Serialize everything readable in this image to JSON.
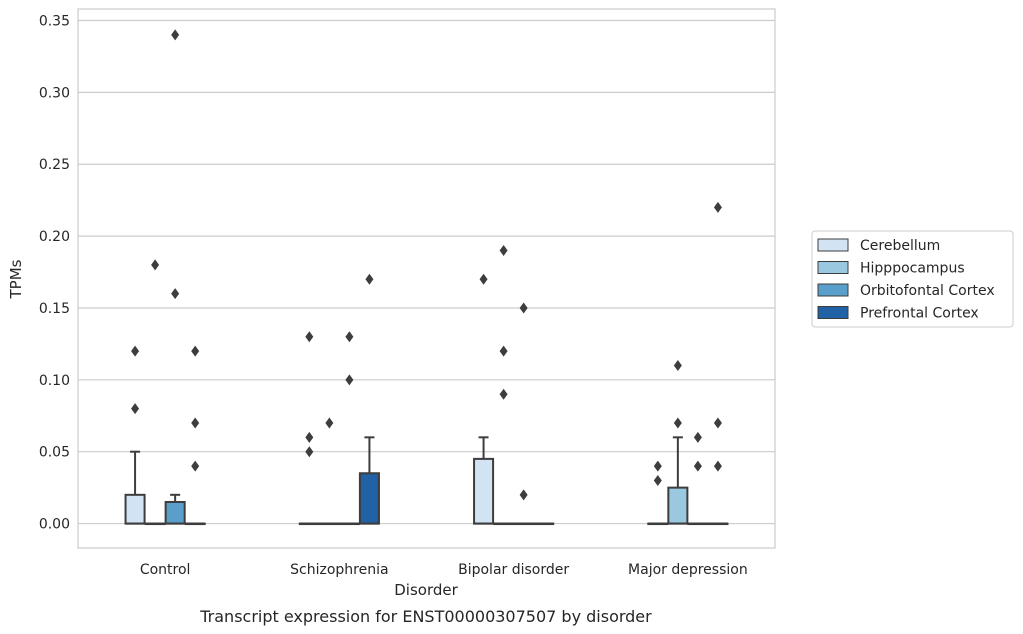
{
  "chart_data": {
    "type": "boxplot",
    "caption": "Transcript expression for ENST00000307507 by disorder",
    "xlabel": "Disorder",
    "ylabel": "TPMs",
    "ylim": [
      -0.017,
      0.358
    ],
    "yticks": [
      0.0,
      0.05,
      0.1,
      0.15,
      0.2,
      0.25,
      0.3,
      0.35
    ],
    "ytick_labels": [
      "0.00",
      "0.05",
      "0.10",
      "0.15",
      "0.20",
      "0.25",
      "0.30",
      "0.35"
    ],
    "grid": "horizontal",
    "legend_position": "right",
    "categories": [
      "Control",
      "Schizophrenia",
      "Bipolar disorder",
      "Major depression"
    ],
    "series": [
      {
        "name": "Cerebellum",
        "color": "#d2e3f3",
        "boxes": [
          {
            "q1": 0.0,
            "median": 0.0,
            "q3": 0.02,
            "whisker_low": 0.0,
            "whisker_high": 0.05,
            "outliers": [
              0.08,
              0.12
            ]
          },
          {
            "q1": 0.0,
            "median": 0.0,
            "q3": 0.0,
            "whisker_low": 0.0,
            "whisker_high": 0.0,
            "outliers": [
              0.05,
              0.06,
              0.13
            ]
          },
          {
            "q1": 0.0,
            "median": 0.0,
            "q3": 0.045,
            "whisker_low": 0.0,
            "whisker_high": 0.06,
            "outliers": [
              0.17
            ]
          },
          {
            "q1": 0.0,
            "median": 0.0,
            "q3": 0.0,
            "whisker_low": 0.0,
            "whisker_high": 0.0,
            "outliers": [
              0.03,
              0.04
            ]
          }
        ]
      },
      {
        "name": "Hipppocampus",
        "color": "#9ac8e0",
        "boxes": [
          {
            "q1": 0.0,
            "median": 0.0,
            "q3": 0.0,
            "whisker_low": 0.0,
            "whisker_high": 0.0,
            "outliers": [
              0.18
            ]
          },
          {
            "q1": 0.0,
            "median": 0.0,
            "q3": 0.0,
            "whisker_low": 0.0,
            "whisker_high": 0.0,
            "outliers": [
              0.07
            ]
          },
          {
            "q1": 0.0,
            "median": 0.0,
            "q3": 0.0,
            "whisker_low": 0.0,
            "whisker_high": 0.0,
            "outliers": [
              0.09,
              0.12,
              0.19
            ]
          },
          {
            "q1": 0.0,
            "median": 0.0,
            "q3": 0.025,
            "whisker_low": 0.0,
            "whisker_high": 0.06,
            "outliers": [
              0.07,
              0.11
            ]
          }
        ]
      },
      {
        "name": "Orbitofontal Cortex",
        "color": "#5a9fcb",
        "boxes": [
          {
            "q1": 0.0,
            "median": 0.0,
            "q3": 0.015,
            "whisker_low": 0.0,
            "whisker_high": 0.02,
            "outliers": [
              0.16,
              0.34
            ]
          },
          {
            "q1": 0.0,
            "median": 0.0,
            "q3": 0.0,
            "whisker_low": 0.0,
            "whisker_high": 0.0,
            "outliers": [
              0.1,
              0.13
            ]
          },
          {
            "q1": 0.0,
            "median": 0.0,
            "q3": 0.0,
            "whisker_low": 0.0,
            "whisker_high": 0.0,
            "outliers": [
              0.02,
              0.15
            ]
          },
          {
            "q1": 0.0,
            "median": 0.0,
            "q3": 0.0,
            "whisker_low": 0.0,
            "whisker_high": 0.0,
            "outliers": [
              0.04,
              0.06
            ]
          }
        ]
      },
      {
        "name": "Prefrontal Cortex",
        "color": "#2161a5",
        "boxes": [
          {
            "q1": 0.0,
            "median": 0.0,
            "q3": 0.0,
            "whisker_low": 0.0,
            "whisker_high": 0.0,
            "outliers": [
              0.04,
              0.07,
              0.12
            ]
          },
          {
            "q1": 0.0,
            "median": 0.0,
            "q3": 0.035,
            "whisker_low": 0.0,
            "whisker_high": 0.06,
            "outliers": [
              0.17
            ]
          },
          {
            "q1": 0.0,
            "median": 0.0,
            "q3": 0.0,
            "whisker_low": 0.0,
            "whisker_high": 0.0,
            "outliers": []
          },
          {
            "q1": 0.0,
            "median": 0.0,
            "q3": 0.0,
            "whisker_low": 0.0,
            "whisker_high": 0.0,
            "outliers": [
              0.04,
              0.07,
              0.22
            ]
          }
        ]
      }
    ]
  }
}
